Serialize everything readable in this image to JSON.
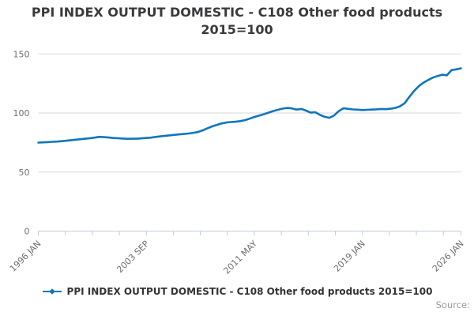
{
  "title": {
    "line1": "PPI INDEX OUTPUT DOMESTIC - C108 Other food products",
    "line2": "2015=100"
  },
  "legend": {
    "label": "PPI INDEX OUTPUT DOMESTIC - C108 Other food products 2015=100"
  },
  "source": {
    "label": "Source:"
  },
  "colors": {
    "line": "#0f76bc",
    "grid": "#d9d9d9",
    "axis": "#c3cbdc",
    "title_text": "#3a3a3c",
    "axis_label_text": "#6d6e70",
    "source_text": "#999999"
  },
  "chart_data": {
    "type": "line",
    "title": "PPI INDEX OUTPUT DOMESTIC - C108 Other food products 2015=100",
    "xlabel": "",
    "ylabel": "",
    "ylim": [
      0,
      150
    ],
    "y_ticks": [
      0,
      50,
      100,
      150
    ],
    "grid": "horizontal-only",
    "legend_position": "bottom",
    "x_axis": {
      "unit": "months since 1996 JAN",
      "range_months": [
        0,
        360
      ],
      "tick_months": [
        0,
        23,
        46,
        69,
        92,
        115,
        138,
        161,
        184,
        207,
        230,
        253,
        276,
        299,
        322,
        345,
        360
      ],
      "labels": [
        {
          "month": 0,
          "label": "1996 JAN"
        },
        {
          "month": 92,
          "label": "2003 SEP"
        },
        {
          "month": 184,
          "label": "2011 MAY"
        },
        {
          "month": 276,
          "label": "2019 JAN"
        },
        {
          "month": 360,
          "label": "2026 JAN"
        }
      ]
    },
    "series": [
      {
        "name": "PPI INDEX OUTPUT DOMESTIC - C108 Other food products 2015=100",
        "start_month": 0,
        "step_months": 4,
        "values": [
          74.9,
          75.1,
          75.3,
          75.6,
          75.8,
          76.1,
          76.5,
          77.0,
          77.4,
          77.8,
          78.2,
          78.6,
          79.1,
          79.8,
          79.5,
          79.2,
          78.8,
          78.6,
          78.3,
          78.1,
          78.2,
          78.2,
          78.5,
          78.8,
          79.1,
          79.7,
          80.2,
          80.7,
          81.1,
          81.5,
          81.9,
          82.2,
          82.6,
          83.2,
          83.9,
          85.3,
          87.0,
          88.6,
          89.9,
          91.1,
          91.9,
          92.3,
          92.6,
          93.1,
          93.9,
          95.2,
          96.6,
          97.7,
          98.9,
          100.3,
          101.6,
          102.7,
          103.7,
          104.3,
          103.9,
          102.9,
          103.4,
          102.0,
          100.3,
          100.6,
          98.3,
          96.7,
          95.9,
          97.9,
          101.6,
          104.0,
          103.5,
          103.0,
          102.8,
          102.5,
          102.7,
          102.9,
          103.1,
          103.4,
          103.2,
          103.6,
          104.3,
          105.6,
          108.2,
          113.6,
          118.6,
          122.6,
          125.6,
          127.9,
          129.9,
          131.3,
          132.4,
          131.9,
          136.3,
          136.9,
          137.8
        ]
      }
    ]
  }
}
